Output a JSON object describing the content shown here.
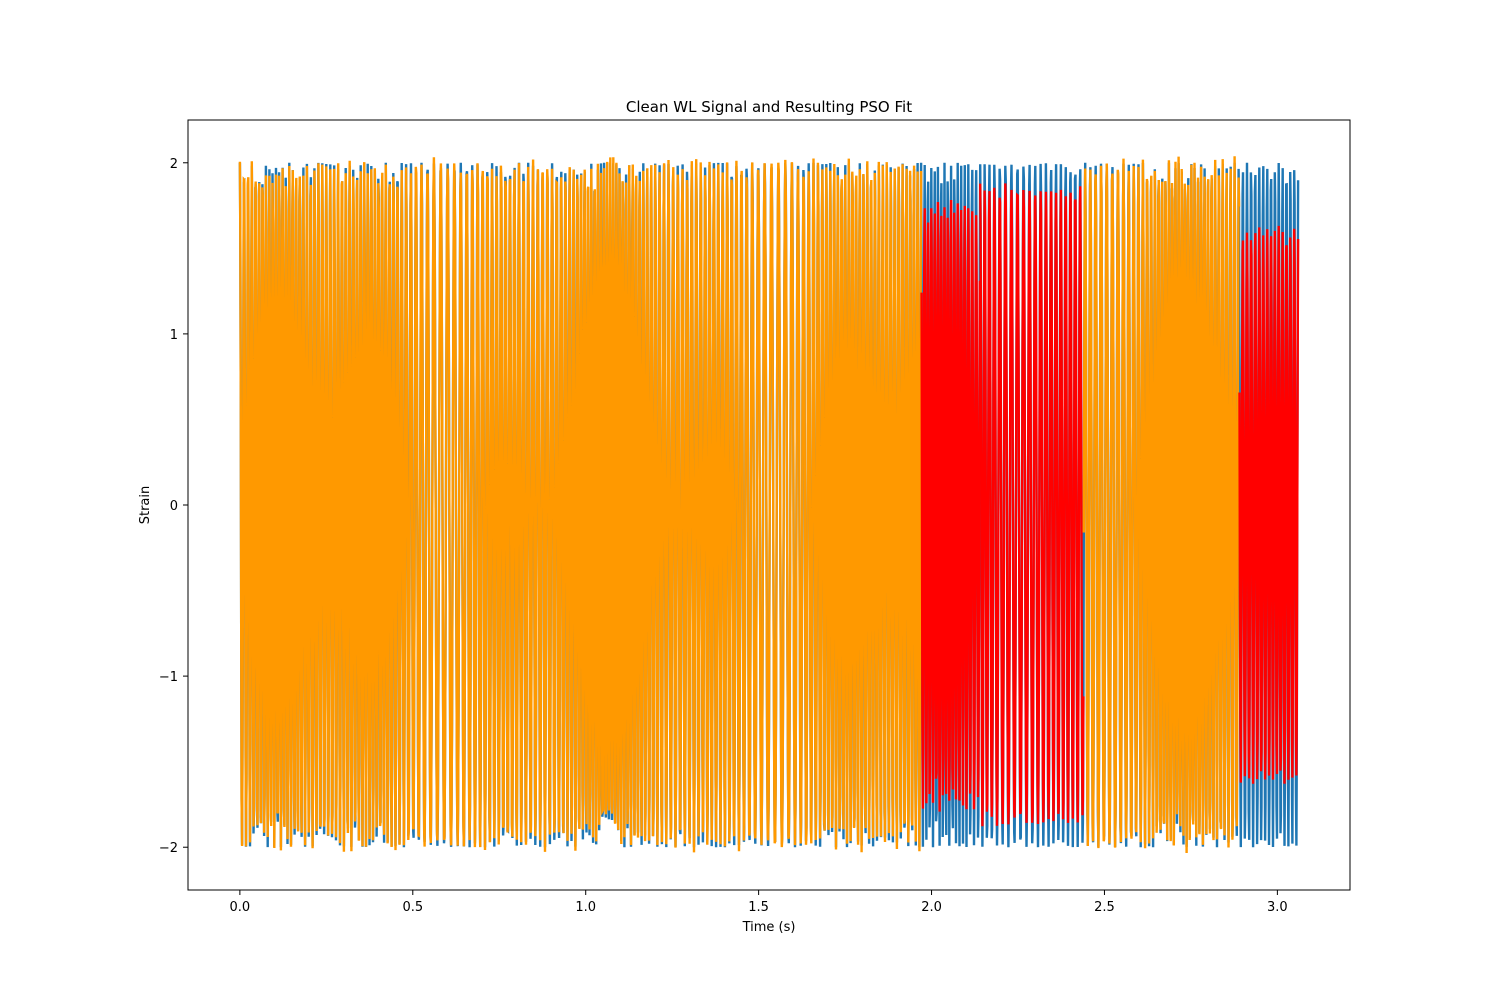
{
  "chart_data": {
    "type": "line",
    "title": "Clean WL Signal and Resulting PSO Fit",
    "xlabel": "Time (s)",
    "ylabel": "Strain",
    "xlim": [
      -0.15,
      3.21
    ],
    "ylim": [
      -2.25,
      2.25
    ],
    "x_ticks": [
      0.0,
      0.5,
      1.0,
      1.5,
      2.0,
      2.5,
      3.0
    ],
    "x_tick_labels": [
      "0.0",
      "0.5",
      "1.0",
      "1.5",
      "2.0",
      "2.5",
      "3.0"
    ],
    "y_ticks": [
      -2,
      -1,
      0,
      1,
      2
    ],
    "y_tick_labels": [
      "−2",
      "−1",
      "0",
      "1",
      "2"
    ],
    "grid": false,
    "legend": "none",
    "x_range_data": [
      0.0,
      3.06
    ],
    "series": [
      {
        "role": "signal",
        "color": "#1f77b4",
        "amplitude": 2.0,
        "approx_cycles_per_second": 80
      },
      {
        "role": "fit",
        "color_matching": "#ff9900",
        "color_mismatch": "#ff0000",
        "segments": [
          {
            "x_start": 0.0,
            "x_end": 1.97,
            "match": true,
            "amplitude": 2.0
          },
          {
            "x_start": 1.97,
            "x_end": 2.14,
            "match": false,
            "amplitude": 1.8
          },
          {
            "x_start": 2.14,
            "x_end": 2.44,
            "match": false,
            "amplitude": 1.9
          },
          {
            "x_start": 2.44,
            "x_end": 2.89,
            "match": true,
            "amplitude": 2.0
          },
          {
            "x_start": 2.89,
            "x_end": 3.06,
            "match": false,
            "amplitude": 1.65
          }
        ]
      }
    ]
  }
}
